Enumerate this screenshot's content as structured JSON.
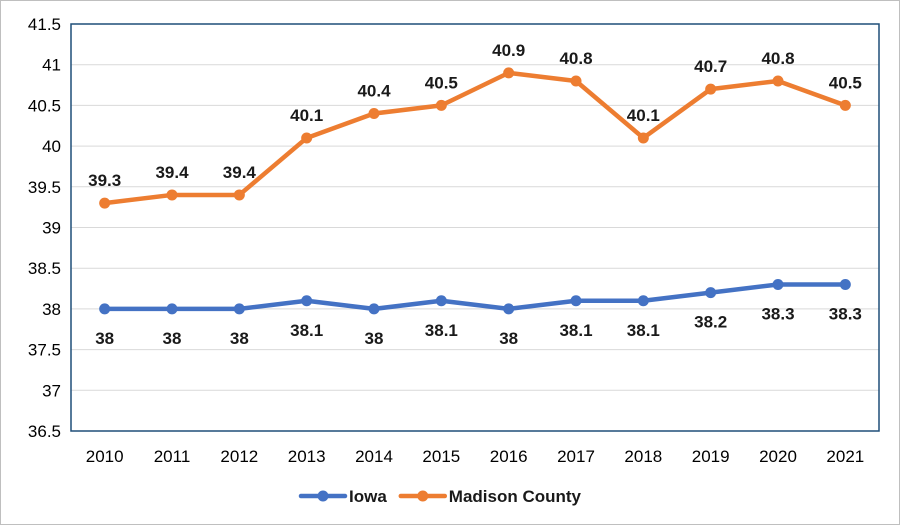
{
  "chart_data": {
    "type": "line",
    "title": "",
    "xlabel": "",
    "ylabel": "",
    "x": [
      "2010",
      "2011",
      "2012",
      "2013",
      "2014",
      "2015",
      "2016",
      "2017",
      "2018",
      "2019",
      "2020",
      "2021"
    ],
    "ylim": [
      36.5,
      41.5
    ],
    "ytick_step": 0.5,
    "yticks": [
      "36.5",
      "37",
      "37.5",
      "38",
      "38.5",
      "39",
      "39.5",
      "40",
      "40.5",
      "41",
      "41.5"
    ],
    "grid": true,
    "legend_position": "bottom",
    "series": [
      {
        "name": "Iowa",
        "color": "#4472c4",
        "values": [
          38,
          38,
          38,
          38.1,
          38,
          38.1,
          38,
          38.1,
          38.1,
          38.2,
          38.3,
          38.3
        ],
        "labels": [
          "38",
          "38",
          "38",
          "38.1",
          "38",
          "38.1",
          "38",
          "38.1",
          "38.1",
          "38.2",
          "38.3",
          "38.3"
        ],
        "label_position": "below"
      },
      {
        "name": "Madison County",
        "color": "#ed7d31",
        "values": [
          39.3,
          39.4,
          39.4,
          40.1,
          40.4,
          40.5,
          40.9,
          40.8,
          40.1,
          40.7,
          40.8,
          40.5
        ],
        "labels": [
          "39.3",
          "39.4",
          "39.4",
          "40.1",
          "40.4",
          "40.5",
          "40.9",
          "40.8",
          "40.1",
          "40.7",
          "40.8",
          "40.5"
        ],
        "label_position": "above"
      }
    ]
  }
}
